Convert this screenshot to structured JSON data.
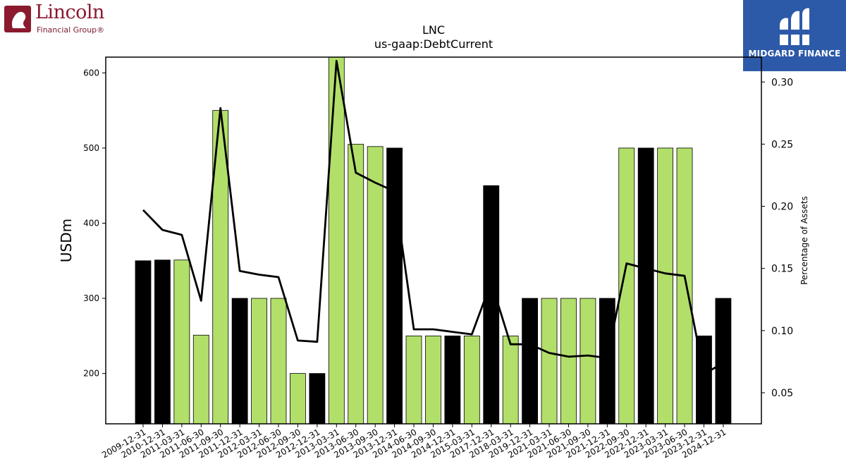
{
  "logos": {
    "left_name": "Lincoln",
    "left_sub": "Financial Group®",
    "right_name": "MIDGARD FINANCE"
  },
  "chart_data": {
    "type": "bar",
    "title": "LNC",
    "subtitle": "us-gaap:DebtCurrent",
    "ylabel": "USDm",
    "y2label": "Percentage of Assets",
    "ylim": [
      133,
      621
    ],
    "y2lim": [
      0.025,
      0.32
    ],
    "yticks": [
      200,
      300,
      400,
      500,
      600
    ],
    "y2ticks": [
      0.05,
      0.1,
      0.15,
      0.2,
      0.25,
      0.3
    ],
    "y2ticklabels": [
      "0.05",
      "0.10",
      "0.15",
      "0.20",
      "0.25",
      "0.30"
    ],
    "colors": {
      "q4": "#000000",
      "other": "#b2df6a",
      "line": "#000000"
    },
    "categories": [
      "2009-12-31",
      "2010-12-31",
      "2011-03-31",
      "2011-06-30",
      "2011-09-30",
      "2011-12-31",
      "2012-03-31",
      "2012-06-30",
      "2012-09-30",
      "2012-12-31",
      "2013-03-31",
      "2013-06-30",
      "2013-09-30",
      "2013-12-31",
      "2014-06-30",
      "2014-09-30",
      "2014-12-31",
      "2015-03-31",
      "2017-12-31",
      "2018-03-31",
      "2019-12-31",
      "2021-03-31",
      "2021-06-30",
      "2021-09-30",
      "2021-12-31",
      "2022-09-30",
      "2022-12-31",
      "2023-03-31",
      "2023-06-30",
      "2023-12-31",
      "2024-12-31"
    ],
    "series": [
      {
        "kind": "bar",
        "values": [
          350,
          351,
          351,
          251,
          550,
          300,
          300,
          300,
          200,
          200,
          621,
          505,
          502,
          500,
          250,
          250,
          250,
          250,
          450,
          250,
          300,
          300,
          300,
          300,
          300,
          500,
          500,
          500,
          500,
          250,
          300
        ]
      },
      {
        "kind": "line",
        "axis": "right",
        "values": [
          0.197,
          0.181,
          0.177,
          0.124,
          0.279,
          0.148,
          0.145,
          0.143,
          0.092,
          0.091,
          0.317,
          0.227,
          0.219,
          0.212,
          0.101,
          0.101,
          0.099,
          0.097,
          0.139,
          0.089,
          0.089,
          0.082,
          0.079,
          0.08,
          0.078,
          0.154,
          0.15,
          0.146,
          0.144,
          0.065,
          0.074
        ]
      }
    ]
  }
}
